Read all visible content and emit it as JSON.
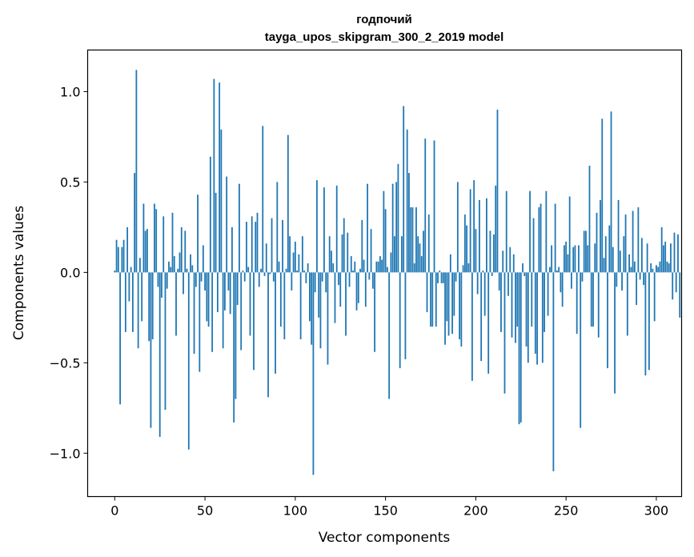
{
  "chart_data": {
    "type": "bar",
    "title_line1": "годпочий",
    "title_line2": "tayga_upos_skipgram_300_2_2019 model",
    "xlabel": "Vector components",
    "ylabel": "Components values",
    "xlim": [
      -15,
      314
    ],
    "ylim": [
      -1.24,
      1.23
    ],
    "x_ticks": [
      0,
      50,
      100,
      150,
      200,
      250,
      300
    ],
    "x_tick_labels": [
      "0",
      "50",
      "100",
      "150",
      "200",
      "250",
      "300"
    ],
    "y_ticks": [
      -1.0,
      -0.5,
      0.0,
      0.5,
      1.0
    ],
    "y_tick_labels": [
      "−1.0",
      "−0.5",
      "0.0",
      "0.5",
      "1.0"
    ],
    "bar_color": "#1f77b4",
    "values": [
      0.01,
      0.18,
      0.14,
      -0.73,
      0.14,
      0.18,
      -0.33,
      0.25,
      -0.16,
      0.03,
      -0.33,
      0.55,
      1.12,
      -0.42,
      0.08,
      -0.27,
      0.38,
      0.23,
      0.24,
      -0.38,
      -0.86,
      -0.37,
      0.38,
      0.35,
      -0.08,
      -0.91,
      -0.14,
      0.31,
      -0.76,
      -0.09,
      0.06,
      0.03,
      0.33,
      0.09,
      -0.35,
      0.02,
      0.11,
      0.25,
      -0.12,
      0.23,
      0.02,
      -0.98,
      0.1,
      0.04,
      -0.45,
      -0.08,
      0.43,
      -0.55,
      -0.05,
      0.15,
      -0.1,
      -0.27,
      -0.3,
      0.64,
      -0.44,
      1.07,
      0.44,
      -0.22,
      1.05,
      0.79,
      -0.42,
      -0.21,
      0.53,
      -0.1,
      -0.23,
      0.25,
      -0.83,
      -0.7,
      -0.18,
      0.49,
      -0.43,
      0.01,
      -0.05,
      0.28,
      0.03,
      -0.35,
      0.31,
      -0.54,
      0.28,
      0.33,
      -0.08,
      0.02,
      0.81,
      -0.02,
      0.16,
      -0.69,
      -0.01,
      0.3,
      -0.05,
      -0.56,
      0.5,
      0.06,
      -0.3,
      0.29,
      -0.37,
      0.02,
      0.76,
      0.2,
      -0.1,
      0.11,
      0.17,
      0.01,
      0.1,
      -0.37,
      0.2,
      0.01,
      -0.06,
      0.05,
      -0.27,
      -0.4,
      -1.12,
      -0.11,
      0.51,
      -0.25,
      -0.42,
      -0.05,
      0.47,
      -0.11,
      -0.51,
      0.2,
      0.12,
      0.05,
      -0.28,
      0.48,
      -0.07,
      -0.19,
      0.21,
      0.3,
      -0.35,
      0.22,
      -0.08,
      0.09,
      0.01,
      0.06,
      -0.21,
      -0.17,
      0.02,
      0.29,
      0.07,
      -0.19,
      0.49,
      -0.04,
      0.24,
      -0.09,
      -0.44,
      0.06,
      0.06,
      0.09,
      0.07,
      0.45,
      0.35,
      0.03,
      -0.7,
      0.11,
      0.49,
      0.2,
      0.5,
      0.6,
      -0.53,
      0.2,
      0.92,
      -0.48,
      0.79,
      0.55,
      0.36,
      0.36,
      0.05,
      0.36,
      0.2,
      0.16,
      0.09,
      0.23,
      0.74,
      -0.22,
      0.32,
      -0.3,
      -0.3,
      0.73,
      -0.3,
      -0.06,
      0.01,
      -0.06,
      -0.06,
      -0.4,
      -0.27,
      -0.35,
      0.1,
      -0.34,
      -0.24,
      -0.05,
      0.5,
      -0.37,
      -0.41,
      0.04,
      0.32,
      0.26,
      0.05,
      0.46,
      -0.6,
      0.51,
      0.24,
      -0.12,
      0.4,
      -0.49,
      0.01,
      -0.24,
      0.41,
      -0.56,
      0.23,
      -0.02,
      0.21,
      0.48,
      0.9,
      -0.1,
      -0.33,
      0.12,
      -0.67,
      0.45,
      -0.13,
      0.14,
      -0.36,
      0.1,
      -0.39,
      -0.3,
      -0.84,
      -0.83,
      0.05,
      -0.02,
      -0.41,
      -0.5,
      0.45,
      -0.3,
      0.3,
      -0.45,
      -0.51,
      0.36,
      0.38,
      -0.5,
      -0.33,
      0.45,
      -0.24,
      0.03,
      0.15,
      -1.1,
      0.38,
      0.01,
      0.03,
      -0.11,
      -0.19,
      0.15,
      0.17,
      0.1,
      0.42,
      -0.09,
      0.14,
      0.15,
      -0.34,
      0.15,
      -0.86,
      -0.05,
      0.23,
      0.23,
      0.15,
      0.59,
      -0.3,
      -0.3,
      0.16,
      0.33,
      -0.36,
      0.4,
      0.85,
      0.08,
      0.2,
      -0.53,
      0.26,
      0.89,
      0.14,
      -0.67,
      -0.08,
      0.4,
      0.12,
      -0.1,
      0.2,
      0.32,
      -0.35,
      0.1,
      0.03,
      0.34,
      0.06,
      -0.18,
      0.36,
      -0.04,
      0.19,
      -0.07,
      -0.57,
      0.16,
      -0.54,
      0.05,
      0.02,
      -0.27,
      0.04,
      0.03,
      0.06,
      0.25,
      0.15,
      0.17,
      0.06,
      0.05,
      0.16,
      -0.15,
      0.22,
      -0.11,
      0.21,
      -0.25
    ]
  }
}
